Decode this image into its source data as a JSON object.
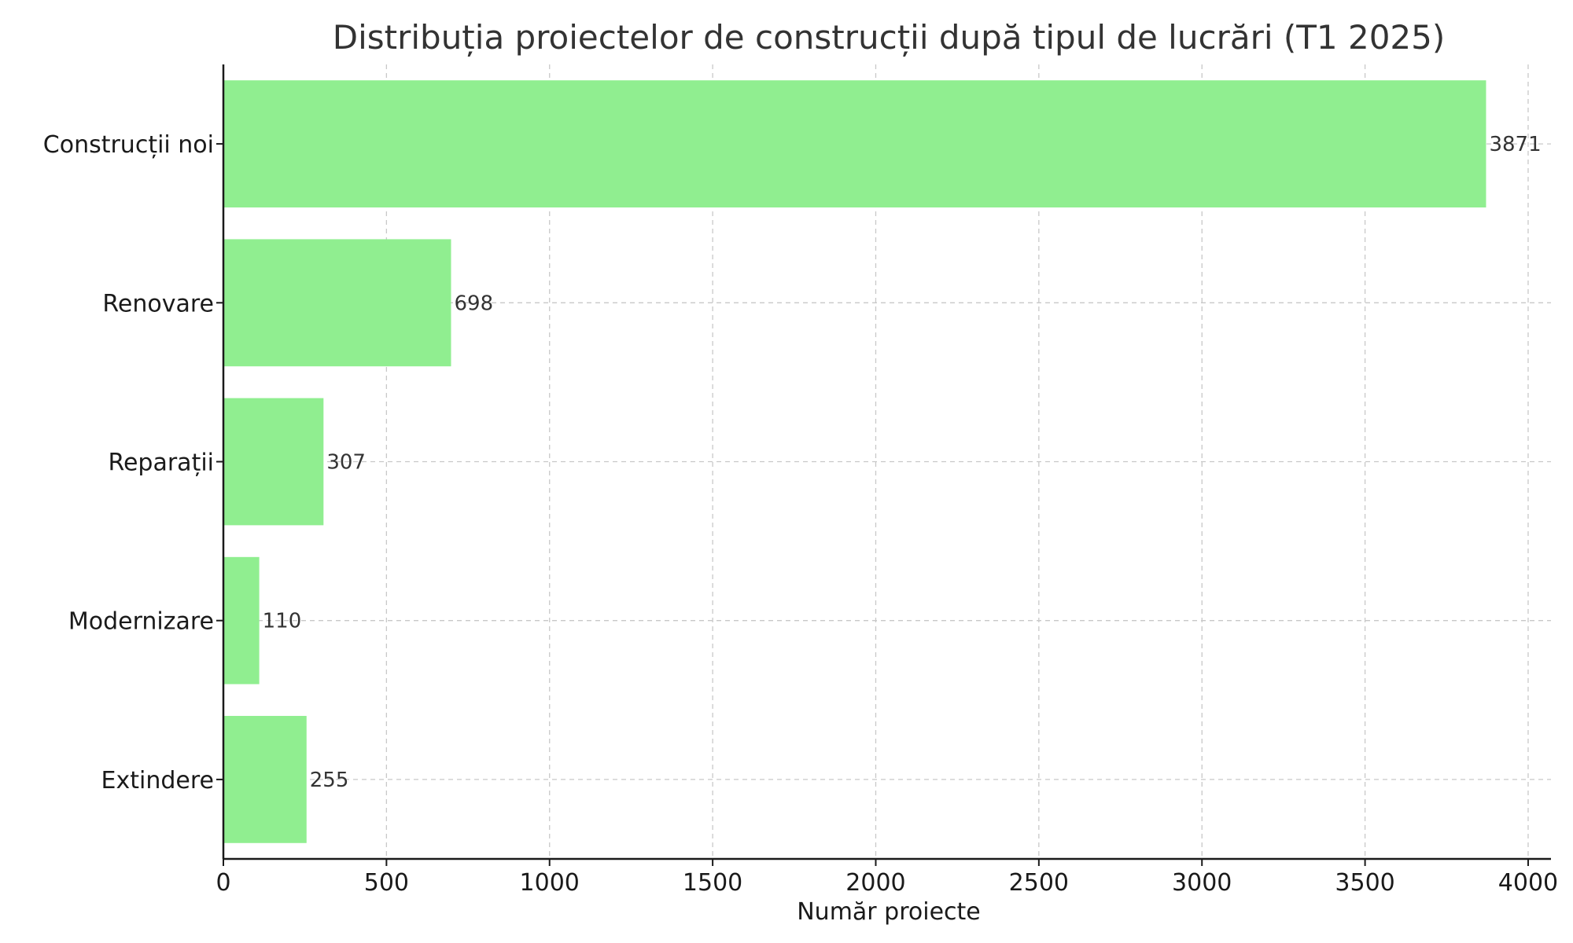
{
  "chart_data": {
    "type": "bar",
    "orientation": "horizontal",
    "title": "Distribuția proiectelor de construcții după tipul de lucrări (T1 2025)",
    "xlabel": "Număr proiecte",
    "ylabel": "",
    "categories": [
      "Construcții noi",
      "Renovare",
      "Reparații",
      "Modernizare",
      "Extindere"
    ],
    "values": [
      3871,
      698,
      307,
      110,
      255
    ],
    "data_labels": [
      "3871",
      "698",
      "307",
      "110",
      "255"
    ],
    "xlim": [
      0,
      4070
    ],
    "x_ticks": [
      0,
      500,
      1000,
      1500,
      2000,
      2500,
      3000,
      3500,
      4000
    ],
    "x_tick_labels": [
      "0",
      "500",
      "1000",
      "1500",
      "2000",
      "2500",
      "3000",
      "3500",
      "4000"
    ],
    "grid": true,
    "bar_color": "#90ee90"
  }
}
